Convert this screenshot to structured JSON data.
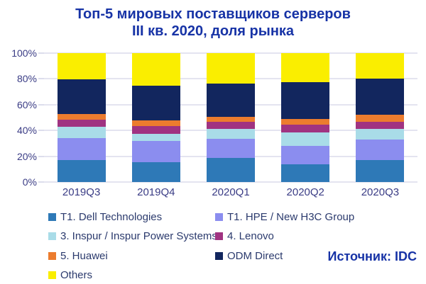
{
  "title": {
    "line1": "Топ-5 мировых поставщиков серверов",
    "line2": "III кв. 2020, доля рынка"
  },
  "source_label": "Источник: IDC",
  "colors": {
    "title_blue": "#1733A6",
    "axis_text": "#3A3C85",
    "legend_text": "#2B3A6D",
    "gridline": "#C9CAE2"
  },
  "chart_data": {
    "type": "bar",
    "stacked": true,
    "unit": "percent_market_share",
    "title": "Топ-5 мировых поставщиков серверов III кв. 2020, доля рынка",
    "categories": [
      "2019Q3",
      "2019Q4",
      "2020Q1",
      "2020Q2",
      "2020Q3"
    ],
    "series": [
      {
        "name": "T1. Dell Technologies",
        "color": "#2E79B7",
        "values": [
          17,
          15.5,
          18.5,
          14,
          17
        ]
      },
      {
        "name": "T1. HPE / New H3C Group",
        "color": "#8B8DEF",
        "values": [
          17,
          16.5,
          15,
          14,
          16
        ]
      },
      {
        "name": "3. Inspur / Inspur Power Systems",
        "color": "#A9DCE8",
        "values": [
          9,
          5.5,
          7.5,
          10.5,
          8
        ]
      },
      {
        "name": "4. Lenovo",
        "color": "#A03381",
        "values": [
          5.5,
          6,
          5.5,
          6,
          6
        ]
      },
      {
        "name": "5. Huawei",
        "color": "#EC7C2E",
        "values": [
          4,
          4.5,
          4,
          4.5,
          5
        ]
      },
      {
        "name": "ODM Direct",
        "color": "#12265E",
        "values": [
          27,
          26.5,
          26,
          28.5,
          28
        ]
      },
      {
        "name": "Others",
        "color": "#FAEE00",
        "values": [
          20.5,
          25.5,
          23.5,
          22.5,
          20
        ]
      }
    ],
    "xlabel": "",
    "ylabel": "",
    "ylim": [
      0,
      100
    ],
    "yticks": [
      "0%",
      "20%",
      "40%",
      "60%",
      "80%",
      "100%"
    ],
    "grid": true,
    "legend_position": "bottom"
  }
}
